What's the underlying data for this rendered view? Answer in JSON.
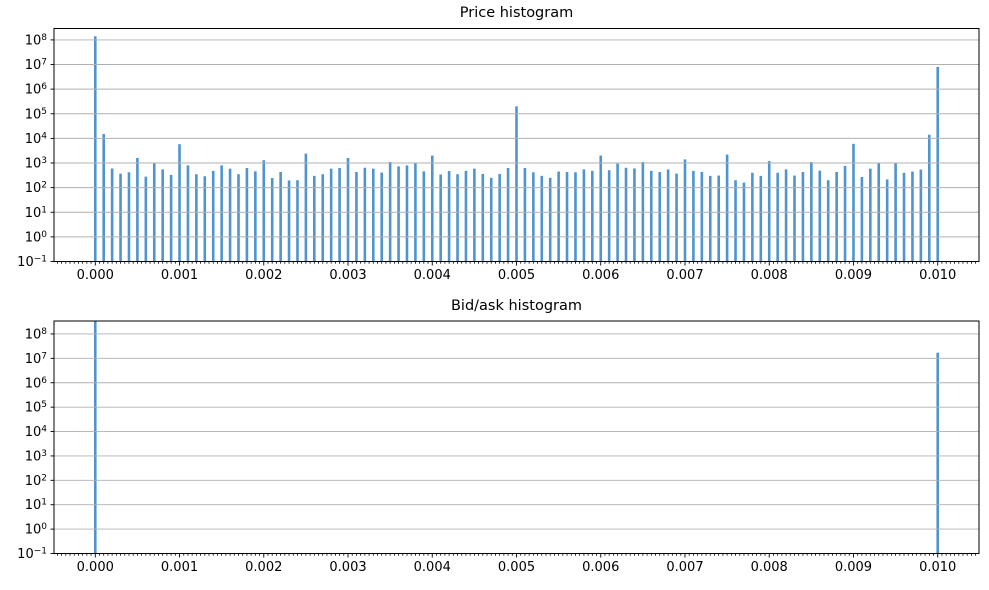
{
  "figure": {
    "background": "#ffffff",
    "bar_color": "#4f94ce",
    "grid_color": "#b0b0b0",
    "spine_color": "#000000",
    "text_color": "#000000"
  },
  "chart_data": [
    {
      "type": "bar",
      "title": "Price histogram",
      "xlabel": "",
      "ylabel": "",
      "xscale": "linear",
      "yscale": "log",
      "grid": "horizontal-major",
      "legend": "none",
      "xlim": [
        -0.00049,
        0.01049
      ],
      "ylim": [
        0.1,
        290000000
      ],
      "xticks": [
        0.0,
        0.001,
        0.002,
        0.003,
        0.004,
        0.005,
        0.006,
        0.007,
        0.008,
        0.009,
        0.01
      ],
      "xtick_labels": [
        "0.000",
        "0.001",
        "0.002",
        "0.003",
        "0.004",
        "0.005",
        "0.006",
        "0.007",
        "0.008",
        "0.009",
        "0.010"
      ],
      "xminor_step": 5e-05,
      "ytick_exponents": [
        -1,
        0,
        1,
        2,
        3,
        4,
        5,
        6,
        7,
        8
      ],
      "bars": {
        "x_start": 0.0,
        "x_step": 0.0001,
        "x_end": 0.01,
        "values": [
          140000000,
          15000,
          600,
          370,
          420,
          1600,
          280,
          950,
          550,
          330,
          5800,
          800,
          350,
          290,
          480,
          800,
          590,
          350,
          630,
          460,
          1300,
          245,
          430,
          195,
          200,
          2400,
          300,
          350,
          590,
          630,
          1600,
          430,
          640,
          590,
          410,
          1100,
          730,
          800,
          1000,
          460,
          2000,
          340,
          470,
          350,
          480,
          590,
          360,
          250,
          360,
          630,
          200000,
          630,
          420,
          300,
          250,
          450,
          430,
          420,
          550,
          480,
          2000,
          510,
          940,
          640,
          600,
          1100,
          480,
          430,
          550,
          370,
          1400,
          480,
          430,
          300,
          310,
          2200,
          200,
          160,
          400,
          300,
          1200,
          400,
          550,
          310,
          430,
          1100,
          490,
          200,
          430,
          760,
          6000,
          270,
          590,
          1000,
          215,
          1000,
          400,
          450,
          540,
          14000,
          8000000
        ]
      },
      "annotations": [
        "tall spike at x=0.000 (~1.4e8)",
        "spike at x=0.005 (~2e5)",
        "spike at x=0.010 (~8e6)",
        "secondary spikes at 0.0001 and 0.0099 (~1.5e4)"
      ]
    },
    {
      "type": "bar",
      "title": "Bid/ask histogram",
      "xlabel": "",
      "ylabel": "",
      "xscale": "linear",
      "yscale": "log",
      "grid": "horizontal-major",
      "legend": "none",
      "xlim": [
        -0.00049,
        0.01049
      ],
      "ylim": [
        0.1,
        340000000
      ],
      "xticks": [
        0.0,
        0.001,
        0.002,
        0.003,
        0.004,
        0.005,
        0.006,
        0.007,
        0.008,
        0.009,
        0.01
      ],
      "xtick_labels": [
        "0.000",
        "0.001",
        "0.002",
        "0.003",
        "0.004",
        "0.005",
        "0.006",
        "0.007",
        "0.008",
        "0.009",
        "0.010"
      ],
      "xminor_step": 5e-05,
      "ytick_exponents": [
        -1,
        0,
        1,
        2,
        3,
        4,
        5,
        6,
        7,
        8
      ],
      "bars": {
        "x": [
          0.0,
          0.01
        ],
        "values": [
          340000000,
          17000000
        ]
      },
      "annotations": [
        "only two bars: x=0.000 bar extends to top of axes (clipped at ~3.4e8)",
        "bar at x=0.010 (~1.7e7)"
      ]
    }
  ]
}
